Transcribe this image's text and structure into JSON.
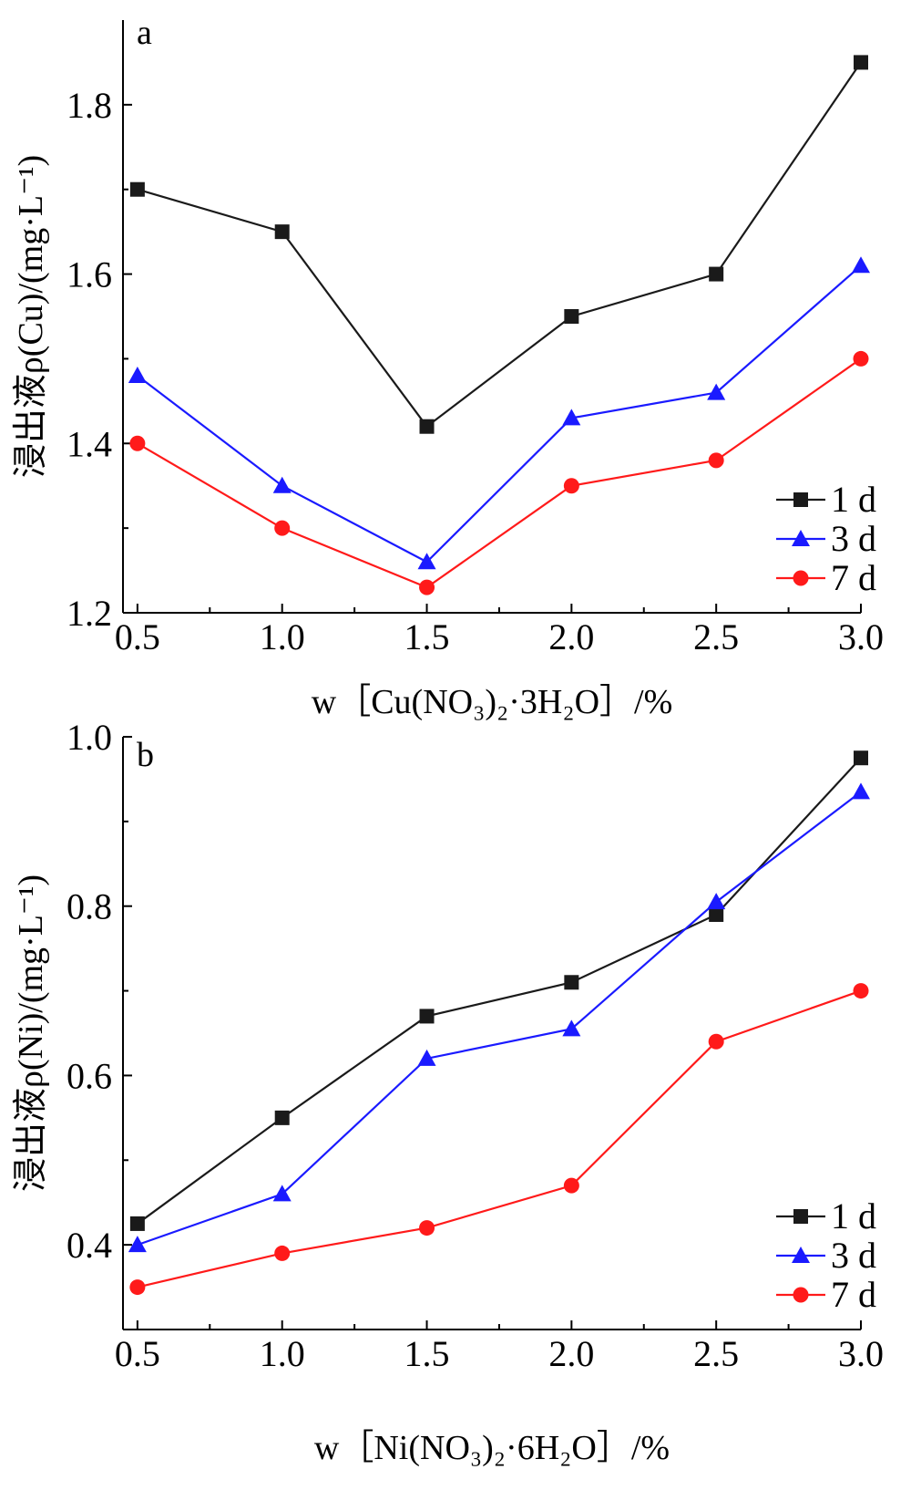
{
  "chart_data": [
    {
      "panel": "a",
      "type": "line",
      "x": [
        0.5,
        1.0,
        1.5,
        2.0,
        2.5,
        3.0
      ],
      "x_ticks": [
        "0.5",
        "1.0",
        "1.5",
        "2.0",
        "2.5",
        "3.0"
      ],
      "y_ticks": [
        "1.2",
        "1.4",
        "1.6",
        "1.8"
      ],
      "xlim": [
        0.45,
        3.0
      ],
      "ylim": [
        1.2,
        1.9
      ],
      "xlabel": "w［Cu(NO₃)₂·3H₂O］/%",
      "ylabel": "浸出液ρ(Cu)/(mg·L⁻¹)",
      "legend_position": "bottom-right",
      "grid": false,
      "series": [
        {
          "name": "1 d",
          "color": "#1a1a1a",
          "marker": "square",
          "values": [
            1.7,
            1.65,
            1.42,
            1.55,
            1.6,
            1.85
          ]
        },
        {
          "name": "3 d",
          "color": "#1a1aff",
          "marker": "triangle",
          "values": [
            1.48,
            1.35,
            1.26,
            1.43,
            1.46,
            1.61
          ]
        },
        {
          "name": "7 d",
          "color": "#ff1a1a",
          "marker": "circle",
          "values": [
            1.4,
            1.3,
            1.23,
            1.35,
            1.38,
            1.5
          ]
        }
      ]
    },
    {
      "panel": "b",
      "type": "line",
      "x": [
        0.5,
        1.0,
        1.5,
        2.0,
        2.5,
        3.0
      ],
      "x_ticks": [
        "0.5",
        "1.0",
        "1.5",
        "2.0",
        "2.5",
        "3.0"
      ],
      "y_ticks": [
        "0.4",
        "0.6",
        "0.8",
        "1.0"
      ],
      "xlim": [
        0.45,
        3.0
      ],
      "ylim": [
        0.3,
        1.0
      ],
      "xlabel": "w［Ni(NO₃)₂·6H₂O］/%",
      "ylabel": "浸出液ρ(Ni)/(mg·L⁻¹)",
      "legend_position": "bottom-right",
      "grid": false,
      "series": [
        {
          "name": "1 d",
          "color": "#1a1a1a",
          "marker": "square",
          "values": [
            0.425,
            0.55,
            0.67,
            0.71,
            0.79,
            0.975
          ]
        },
        {
          "name": "3 d",
          "color": "#1a1aff",
          "marker": "triangle",
          "values": [
            0.4,
            0.46,
            0.62,
            0.655,
            0.805,
            0.935
          ]
        },
        {
          "name": "7 d",
          "color": "#ff1a1a",
          "marker": "circle",
          "values": [
            0.35,
            0.39,
            0.42,
            0.47,
            0.64,
            0.7
          ]
        }
      ]
    }
  ]
}
